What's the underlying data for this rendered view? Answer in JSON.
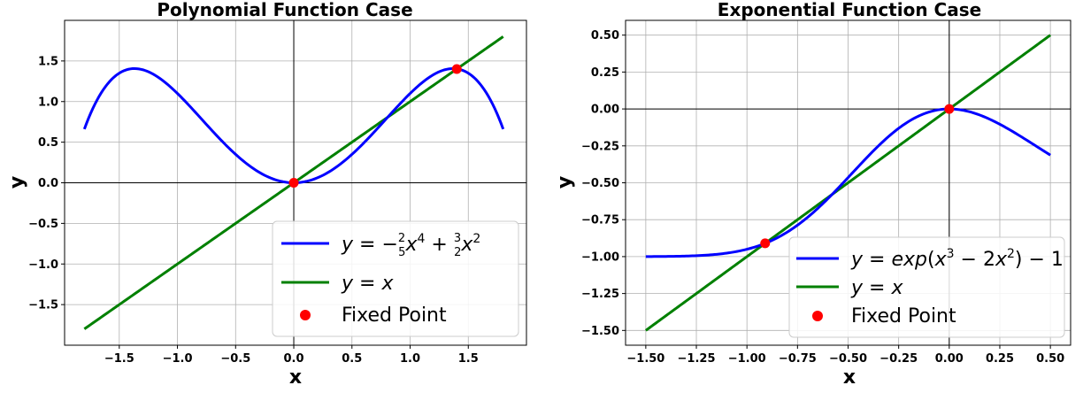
{
  "chart_data": [
    {
      "type": "line",
      "title": "Polynomial Function Case",
      "xlabel": "x",
      "ylabel": "y",
      "xlim": [
        -1.97,
        2.0
      ],
      "ylim": [
        -2.0,
        2.0
      ],
      "xticks": [
        -1.5,
        -1.0,
        -0.5,
        0.0,
        0.5,
        1.0,
        1.5
      ],
      "xtick_labels": [
        "−1.5",
        "−1.0",
        "−0.5",
        "0.0",
        "0.5",
        "1.0",
        "1.5"
      ],
      "yticks": [
        -1.5,
        -1.0,
        -0.5,
        0.0,
        0.5,
        1.0,
        1.5
      ],
      "ytick_labels": [
        "−1.5",
        "−1.0",
        "−0.5",
        "0.0",
        "0.5",
        "1.0",
        "1.5"
      ],
      "grid": true,
      "legend_position": "lower-right",
      "series": [
        {
          "name": "y = −(2/5)x⁴ + (3/2)x²",
          "function": "-0.4*x^4 + 1.5*x^2",
          "x_range": [
            -1.8,
            1.8
          ],
          "color": "#0000ff"
        },
        {
          "name": "y = x",
          "function": "x",
          "x_range": [
            -1.8,
            1.8
          ],
          "color": "#008000"
        }
      ],
      "points": {
        "name": "Fixed Point",
        "color": "#ff0000",
        "x": [
          0.0,
          1.401
        ],
        "y": [
          0.0,
          1.401
        ]
      }
    },
    {
      "type": "line",
      "title": "Exponential Function Case",
      "xlabel": "x",
      "ylabel": "y",
      "xlim": [
        -1.6,
        0.6
      ],
      "ylim": [
        -1.6,
        0.6
      ],
      "xticks": [
        -1.5,
        -1.25,
        -1.0,
        -0.75,
        -0.5,
        -0.25,
        0.0,
        0.25,
        0.5
      ],
      "xtick_labels": [
        "−1.50",
        "−1.25",
        "−1.00",
        "−0.75",
        "−0.50",
        "−0.25",
        "0.00",
        "0.25",
        "0.50"
      ],
      "yticks": [
        -1.5,
        -1.25,
        -1.0,
        -0.75,
        -0.5,
        -0.25,
        0.0,
        0.25,
        0.5
      ],
      "ytick_labels": [
        "−1.50",
        "−1.25",
        "−1.00",
        "−0.75",
        "−0.50",
        "−0.25",
        "0.00",
        "0.25",
        "0.50"
      ],
      "grid": true,
      "legend_position": "lower-right",
      "series": [
        {
          "name": "y = exp(x³ − 2x²) − 1",
          "function": "exp(x^3 - 2*x^2) - 1",
          "x_range": [
            -1.5,
            0.5
          ],
          "color": "#0000ff"
        },
        {
          "name": "y = x",
          "function": "x",
          "x_range": [
            -1.5,
            0.5
          ],
          "color": "#008000"
        }
      ],
      "points": {
        "name": "Fixed Point",
        "color": "#ff0000",
        "x": [
          -0.91,
          0.0
        ],
        "y": [
          -0.91,
          0.0
        ]
      }
    }
  ]
}
